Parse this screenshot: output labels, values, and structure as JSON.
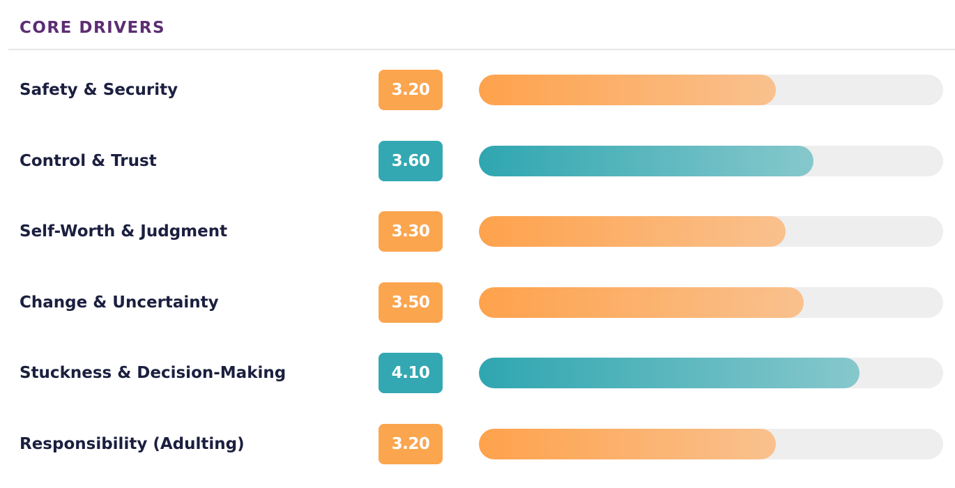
{
  "section": {
    "title": "CORE DRIVERS"
  },
  "colors": {
    "title": "#5c2d73",
    "label": "#1b1f3f",
    "orange": "#fba54e",
    "teal": "#33a8b2",
    "track": "#eeeeee"
  },
  "drivers": [
    {
      "label": "Safety & Security",
      "score": "3.20",
      "fill_fraction": 0.64,
      "color": "orange"
    },
    {
      "label": "Control & Trust",
      "score": "3.60",
      "fill_fraction": 0.72,
      "color": "teal"
    },
    {
      "label": "Self-Worth & Judgment",
      "score": "3.30",
      "fill_fraction": 0.66,
      "color": "orange"
    },
    {
      "label": "Change & Uncertainty",
      "score": "3.50",
      "fill_fraction": 0.7,
      "color": "orange"
    },
    {
      "label": "Stuckness & Decision-Making",
      "score": "4.10",
      "fill_fraction": 0.82,
      "color": "teal"
    },
    {
      "label": "Responsibility (Adulting)",
      "score": "3.20",
      "fill_fraction": 0.64,
      "color": "orange"
    }
  ]
}
